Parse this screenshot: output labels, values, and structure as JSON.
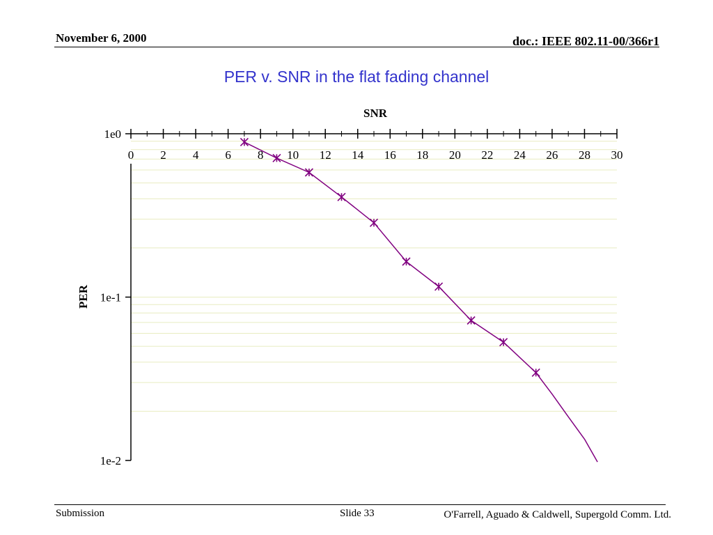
{
  "header": {
    "date": "November 6, 2000",
    "doc": "doc.: IEEE 802.11-00/366r1"
  },
  "slide_title": "PER v. SNR in the flat fading channel",
  "footer": {
    "left": "Submission",
    "middle": "Slide 33",
    "right": "O'Farrell, Aguado & Caldwell, Supergold Comm. Ltd."
  },
  "colors": {
    "title": "#3333cc",
    "series": "#800080",
    "grid": "#e8ecc0"
  },
  "chart_data": {
    "type": "line",
    "title": "",
    "xlabel": "SNR",
    "ylabel": "PER",
    "xlim": [
      0,
      30
    ],
    "ylim": [
      0.01,
      1
    ],
    "yscale": "log",
    "x_axis_position": "top",
    "x_ticks": [
      "0",
      "2",
      "4",
      "6",
      "8",
      "10",
      "12",
      "14",
      "16",
      "18",
      "20",
      "22",
      "24",
      "26",
      "28",
      "30"
    ],
    "y_ticks": [
      "1e0",
      "1e-1",
      "1e-2"
    ],
    "grid": true,
    "series": [
      {
        "name": "",
        "marker": "star",
        "x": [
          7,
          9,
          11,
          13,
          15,
          17,
          19,
          21,
          23,
          25
        ],
        "y": [
          0.89,
          0.71,
          0.58,
          0.41,
          0.285,
          0.165,
          0.116,
          0.072,
          0.053,
          0.0345
        ]
      }
    ],
    "line_extension": {
      "x": [
        25,
        26,
        27,
        28,
        28.8
      ],
      "y": [
        0.0345,
        0.0255,
        0.0185,
        0.0135,
        0.0098
      ]
    }
  }
}
